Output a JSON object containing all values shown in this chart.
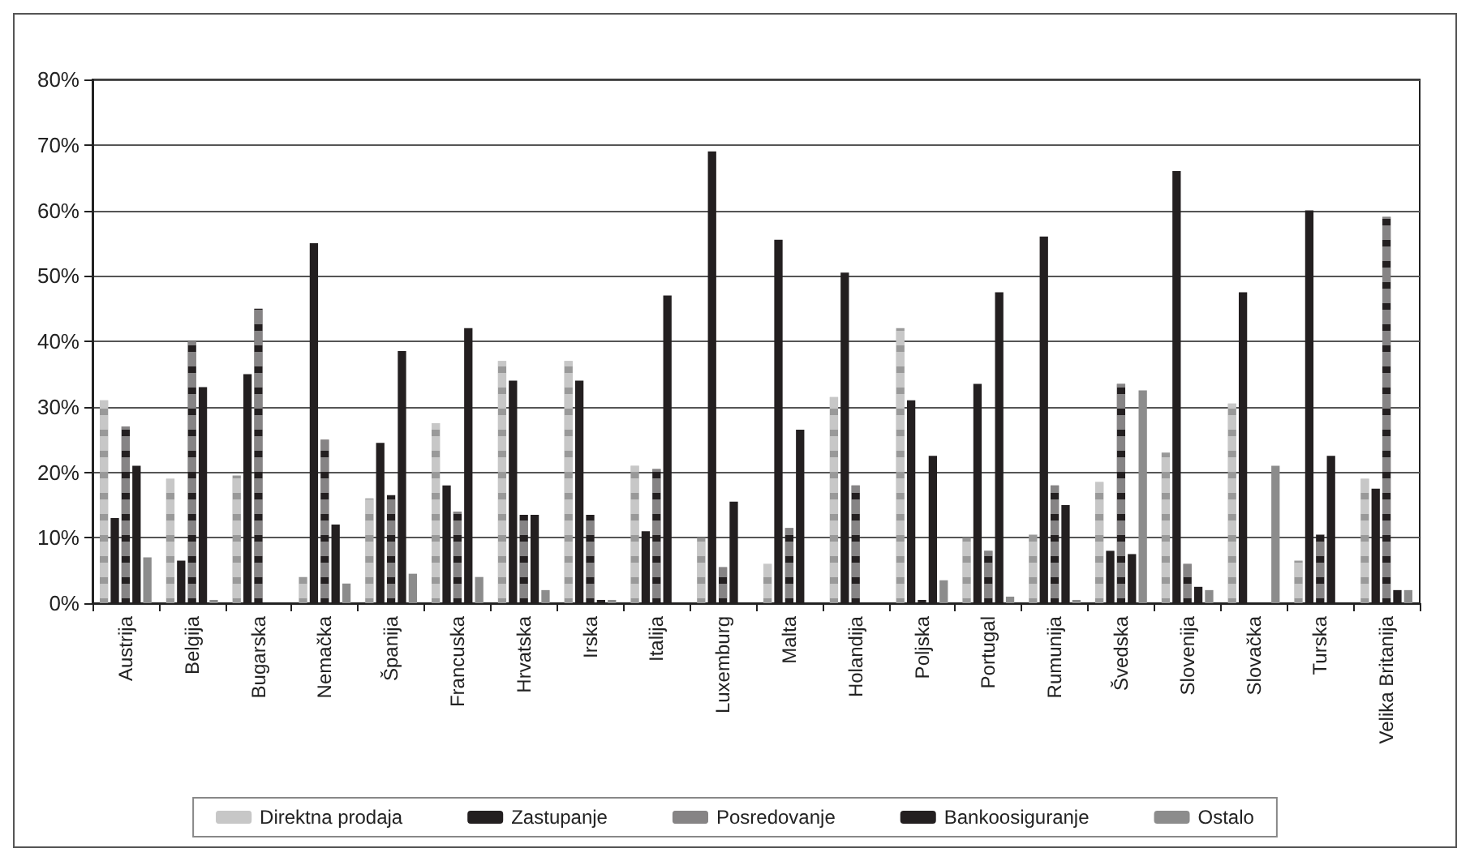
{
  "chart_data": {
    "type": "bar",
    "categories": [
      "Austrija",
      "Belgija",
      "Bugarska",
      "Nemačka",
      "Španija",
      "Francuska",
      "Hrvatska",
      "Irska",
      "Italija",
      "Luxemburg",
      "Malta",
      "Holandija",
      "Poljska",
      "Portugal",
      "Rumunija",
      "Švedska",
      "Slovenija",
      "Slovačka",
      "Turska",
      "Velika Britanija"
    ],
    "series": [
      {
        "name": "Direktna prodaja",
        "color": "#999999",
        "line_style": "dashed",
        "values": [
          31,
          19,
          19.5,
          4,
          16,
          27.5,
          37,
          37,
          21,
          10,
          6,
          31.5,
          42,
          10,
          10.5,
          18.5,
          23,
          30.5,
          6.5,
          19
        ]
      },
      {
        "name": "Zastupanje",
        "color": "#231f20",
        "line_style": "solid",
        "values": [
          13,
          6.5,
          35,
          55,
          24.5,
          18,
          34,
          34,
          11,
          69,
          55.5,
          50.5,
          31,
          33.5,
          56,
          8,
          66,
          47.5,
          60,
          17.5
        ]
      },
      {
        "name": "Posredovanje",
        "color": "#231f20",
        "line_style": "dashed",
        "values": [
          27,
          40,
          45,
          25,
          16.5,
          14,
          13.5,
          13.5,
          20.5,
          5.5,
          11.5,
          18,
          0.5,
          8,
          18,
          33.5,
          6,
          0,
          10.5,
          59
        ]
      },
      {
        "name": "Bankoosiguranje",
        "color": "#231f20",
        "line_style": "dotted",
        "values": [
          21,
          33,
          0,
          12,
          38.5,
          42,
          13.5,
          0.5,
          47,
          15.5,
          26.5,
          0,
          22.5,
          47.5,
          15,
          7.5,
          2.5,
          0,
          22.5,
          2
        ]
      },
      {
        "name": "Ostalo",
        "color": "#8c8c8c",
        "line_style": "solid",
        "values": [
          7,
          0.5,
          0,
          3,
          4.5,
          4,
          2,
          0.5,
          0,
          0,
          0,
          0,
          3.5,
          1,
          0.5,
          32.5,
          2,
          21,
          0,
          2
        ]
      }
    ],
    "ylim": [
      0,
      80
    ],
    "yticks": [
      {
        "value": 0,
        "label": "0%"
      },
      {
        "value": 10,
        "label": "10%"
      },
      {
        "value": 20,
        "label": "20%"
      },
      {
        "value": 30,
        "label": "30%"
      },
      {
        "value": 40,
        "label": "40%"
      },
      {
        "value": 50,
        "label": "50%"
      },
      {
        "value": 60,
        "label": "60%"
      },
      {
        "value": 70,
        "label": "70%"
      },
      {
        "value": 80,
        "label": "80%"
      }
    ],
    "grid": "y",
    "legend": "bottom"
  }
}
